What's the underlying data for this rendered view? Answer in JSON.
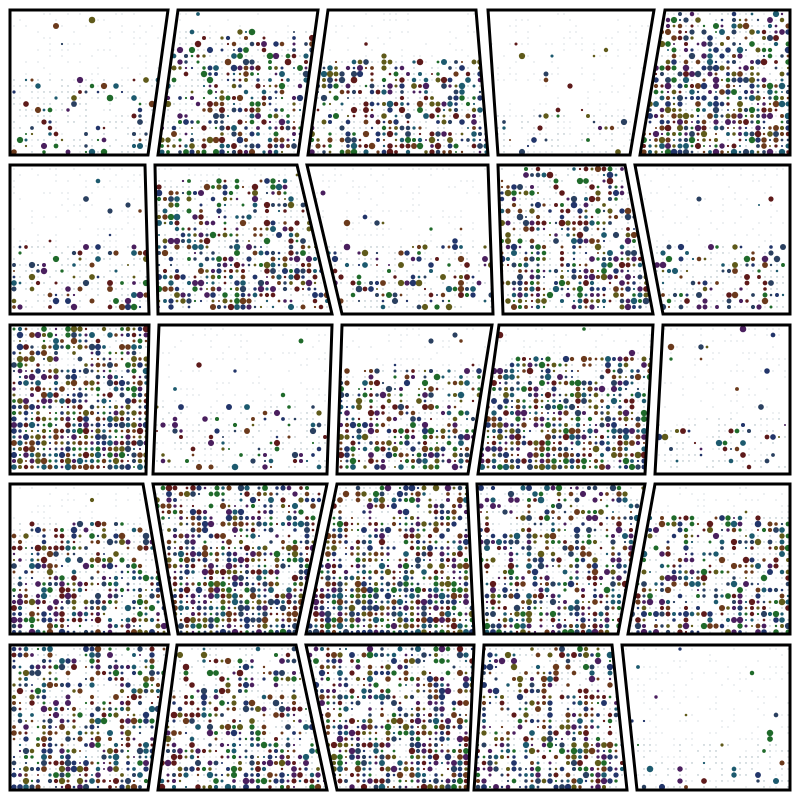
{
  "artwork": {
    "palette": {
      "background": "#ffffff",
      "outline": "#000000",
      "dots": [
        "#5e1a1a",
        "#6b3a1c",
        "#5f5a1a",
        "#1f6a2a",
        "#1d5a6e",
        "#22356a",
        "#4a1f5e",
        "#2a4060"
      ],
      "faint_dot": "#9fb0b8"
    },
    "grid": {
      "rows": 5,
      "columns": 5
    },
    "panels": [
      {
        "row": 0,
        "col": 0,
        "density": 0.18,
        "top_empty": 0.45
      },
      {
        "row": 0,
        "col": 1,
        "density": 0.55,
        "top_empty": 0.15
      },
      {
        "row": 0,
        "col": 2,
        "density": 0.55,
        "top_empty": 0.35
      },
      {
        "row": 0,
        "col": 3,
        "density": 0.1,
        "top_empty": 0.7
      },
      {
        "row": 0,
        "col": 4,
        "density": 0.8,
        "top_empty": 0.0
      },
      {
        "row": 1,
        "col": 0,
        "density": 0.3,
        "top_empty": 0.55
      },
      {
        "row": 1,
        "col": 1,
        "density": 0.6,
        "top_empty": 0.1
      },
      {
        "row": 1,
        "col": 2,
        "density": 0.35,
        "top_empty": 0.55
      },
      {
        "row": 1,
        "col": 3,
        "density": 0.65,
        "top_empty": 0.0
      },
      {
        "row": 1,
        "col": 4,
        "density": 0.3,
        "top_empty": 0.55
      },
      {
        "row": 2,
        "col": 0,
        "density": 0.95,
        "top_empty": 0.0
      },
      {
        "row": 2,
        "col": 1,
        "density": 0.2,
        "top_empty": 0.55
      },
      {
        "row": 2,
        "col": 2,
        "density": 0.65,
        "top_empty": 0.3
      },
      {
        "row": 2,
        "col": 3,
        "density": 0.8,
        "top_empty": 0.2
      },
      {
        "row": 2,
        "col": 4,
        "density": 0.15,
        "top_empty": 0.6
      },
      {
        "row": 3,
        "col": 0,
        "density": 0.6,
        "top_empty": 0.25
      },
      {
        "row": 3,
        "col": 1,
        "density": 0.85,
        "top_empty": 0.0
      },
      {
        "row": 3,
        "col": 2,
        "density": 0.85,
        "top_empty": 0.0
      },
      {
        "row": 3,
        "col": 3,
        "density": 0.7,
        "top_empty": 0.0
      },
      {
        "row": 3,
        "col": 4,
        "density": 0.55,
        "top_empty": 0.2
      },
      {
        "row": 4,
        "col": 0,
        "density": 0.7,
        "top_empty": 0.0
      },
      {
        "row": 4,
        "col": 1,
        "density": 0.55,
        "top_empty": 0.0
      },
      {
        "row": 4,
        "col": 2,
        "density": 0.75,
        "top_empty": 0.0
      },
      {
        "row": 4,
        "col": 3,
        "density": 0.6,
        "top_empty": 0.0
      },
      {
        "row": 4,
        "col": 4,
        "density": 0.1,
        "top_empty": 0.65
      }
    ]
  }
}
